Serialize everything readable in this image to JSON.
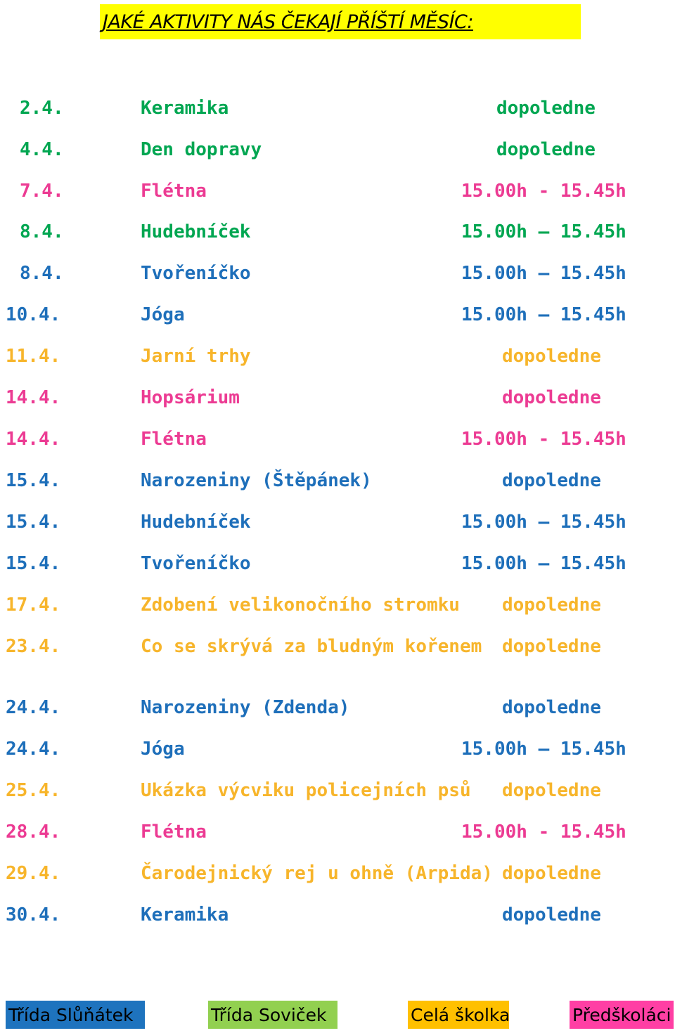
{
  "title": "JAKÉ AKTIVITY NÁS ČEKAJÍ PŘÍŠTÍ MĚSÍC:",
  "colors": {
    "green": "#00a651",
    "pink": "#ec3b93",
    "blue": "#1e6fba",
    "yellow": "#f7b52b",
    "title_bg": "#ffff00",
    "legend_blue": "#1e73be",
    "legend_green": "#92d050",
    "legend_yellow": "#ffc000",
    "legend_pink": "#ff3fa4"
  },
  "activities": [
    {
      "date": "2.4.",
      "name": "Keramika",
      "time": "dopoledne",
      "group": "green"
    },
    {
      "date": "4.4.",
      "name": "Den dopravy",
      "time": "dopoledne",
      "group": "green"
    },
    {
      "date": "7.4.",
      "name": "Flétna",
      "time": "15.00h - 15.45h",
      "group": "pink"
    },
    {
      "date": "8.4.",
      "name": "Hudebníček",
      "time": "15.00h – 15.45h",
      "group": "green"
    },
    {
      "date": "8.4.",
      "name": "Tvořeníčko",
      "time": "15.00h – 15.45h",
      "group": "blue"
    },
    {
      "date": "10.4.",
      "name": "Jóga",
      "time": "15.00h – 15.45h",
      "group": "green"
    },
    {
      "date": "11.4.",
      "name": "Jarní trhy",
      "time": "dopoledne",
      "group": "yellow"
    },
    {
      "date": "14.4.",
      "name": "Hopsárium",
      "time": "dopoledne",
      "group": "pink"
    },
    {
      "date": "14.4.",
      "name": "Flétna",
      "time": "15.00h - 15.45h",
      "group": "pink"
    },
    {
      "date": "15.4.",
      "name": "Narozeniny (Štěpánek)",
      "time": "dopoledne",
      "group": "blue"
    },
    {
      "date": "15.4.",
      "name": "Hudebníček",
      "time": "15.00h – 15.45h",
      "group": "blue"
    },
    {
      "date": "15.4.",
      "name": "Tvořeníčko",
      "time": "15.00h – 15.45h",
      "group": "green"
    },
    {
      "date": "17.4.",
      "name": "Zdobení velikonočního stromku",
      "time": "dopoledne",
      "group": "yellow"
    },
    {
      "date": "23.4.",
      "name": "Co se skrývá za bludným kořenem",
      "time": "dopoledne",
      "group": "pink"
    },
    {
      "date": "24.4.",
      "name": "Narozeniny (Zdenda)",
      "time": "dopoledne",
      "group": "blue"
    },
    {
      "date": "24.4.",
      "name": "Jóga",
      "time": "15.00h – 15.45h",
      "group": "blue"
    },
    {
      "date": "25.4.",
      "name": "Ukázka výcviku policejních psů",
      "time": "dopoledne",
      "group": "yellow"
    },
    {
      "date": "28.4.",
      "name": "Flétna",
      "time": "15.00h - 15.45h",
      "group": "pink"
    },
    {
      "date": "29.4.",
      "name": "Čarodejnický rej u ohně (Arpida)",
      "time": "dopoledne",
      "group": "yellow"
    },
    {
      "date": "30.4.",
      "name": "Keramika",
      "time": "dopoledne",
      "group": "blue"
    }
  ],
  "legend": [
    {
      "label": "Třída Slůňátek",
      "color": "blue"
    },
    {
      "label": "Třída Soviček",
      "color": "green"
    },
    {
      "label": "Celá školka",
      "color": "yellow"
    },
    {
      "label": "Předškoláci",
      "color": "pink"
    }
  ]
}
